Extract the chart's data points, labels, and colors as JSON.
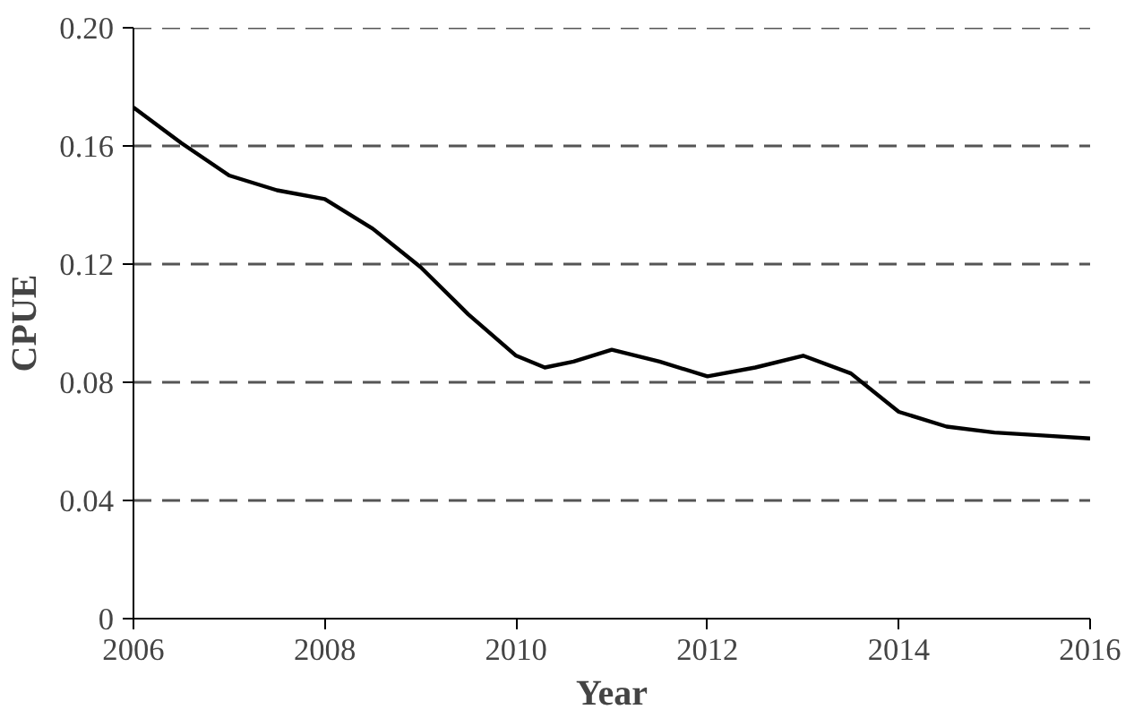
{
  "chart_data": {
    "type": "line",
    "xlabel": "Year",
    "ylabel": "CPUE",
    "x": [
      2006,
      2006.5,
      2007,
      2007.5,
      2008,
      2008.5,
      2009,
      2009.5,
      2010,
      2010.3,
      2010.6,
      2011,
      2011.5,
      2012,
      2012.5,
      2013,
      2013.5,
      2014,
      2014.5,
      2015,
      2015.5,
      2016
    ],
    "series": [
      {
        "color": "#000000",
        "values": [
          0.173,
          0.161,
          0.15,
          0.145,
          0.142,
          0.132,
          0.119,
          0.103,
          0.089,
          0.085,
          0.087,
          0.091,
          0.087,
          0.082,
          0.085,
          0.089,
          0.083,
          0.07,
          0.065,
          0.063,
          0.062,
          0.061
        ]
      }
    ],
    "xlim": [
      2006,
      2016
    ],
    "xticks": [
      2006,
      2008,
      2010,
      2012,
      2014,
      2016
    ],
    "ylim": [
      0,
      0.2
    ],
    "yticks": [
      {
        "value": 0,
        "label": "0"
      },
      {
        "value": 0.04,
        "label": "0.04"
      },
      {
        "value": 0.08,
        "label": "0.08"
      },
      {
        "value": 0.12,
        "label": "0.12"
      },
      {
        "value": 0.16,
        "label": "0.16"
      },
      {
        "value": 0.2,
        "label": "0.20"
      }
    ],
    "grid": "y",
    "line_style": "solid",
    "marker": "none"
  }
}
